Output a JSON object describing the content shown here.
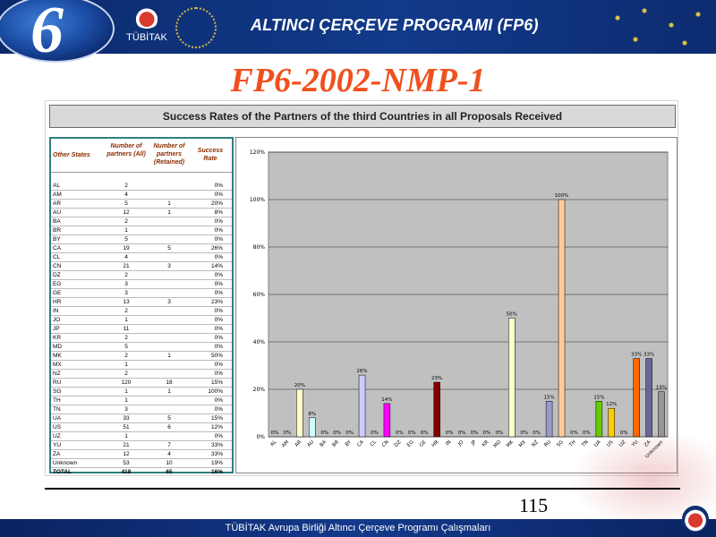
{
  "header": {
    "program_title": "ALTINCI ÇERÇEVE PROGRAMI (FP6)",
    "logo_number": "6",
    "tubitak_label": "TÜBİTAK"
  },
  "slide": {
    "title": "FP6-2002-NMP-1",
    "page_number": "115"
  },
  "footer": {
    "text": "TÜBİTAK Avrupa Birliği Altıncı Çerçeve Programı Çalışmaları"
  },
  "table": {
    "headers": [
      "Other States",
      "Number of partners (All)",
      "Number of partners (Retained)",
      "Success Rate"
    ],
    "rows": [
      [
        "AL",
        "2",
        "",
        "0%"
      ],
      [
        "AM",
        "4",
        "",
        "0%"
      ],
      [
        "AR",
        "5",
        "1",
        "20%"
      ],
      [
        "AU",
        "12",
        "1",
        "8%"
      ],
      [
        "BA",
        "2",
        "",
        "0%"
      ],
      [
        "BR",
        "1",
        "",
        "0%"
      ],
      [
        "BY",
        "5",
        "",
        "0%"
      ],
      [
        "CA",
        "19",
        "5",
        "26%"
      ],
      [
        "CL",
        "4",
        "",
        "0%"
      ],
      [
        "CN",
        "21",
        "3",
        "14%"
      ],
      [
        "DZ",
        "2",
        "",
        "0%"
      ],
      [
        "EG",
        "3",
        "",
        "0%"
      ],
      [
        "GE",
        "3",
        "",
        "0%"
      ],
      [
        "HR",
        "13",
        "3",
        "23%"
      ],
      [
        "IN",
        "2",
        "",
        "0%"
      ],
      [
        "JO",
        "1",
        "",
        "0%"
      ],
      [
        "JP",
        "11",
        "",
        "0%"
      ],
      [
        "KR",
        "2",
        "",
        "0%"
      ],
      [
        "MD",
        "5",
        "",
        "0%"
      ],
      [
        "MK",
        "2",
        "1",
        "50%"
      ],
      [
        "MX",
        "1",
        "",
        "0%"
      ],
      [
        "NZ",
        "2",
        "",
        "0%"
      ],
      [
        "RU",
        "120",
        "18",
        "15%"
      ],
      [
        "SG",
        "1",
        "1",
        "100%"
      ],
      [
        "TH",
        "1",
        "",
        "0%"
      ],
      [
        "TN",
        "3",
        "",
        "0%"
      ],
      [
        "UA",
        "33",
        "5",
        "15%"
      ],
      [
        "US",
        "51",
        "6",
        "12%"
      ],
      [
        "UZ",
        "1",
        "",
        "0%"
      ],
      [
        "YU",
        "21",
        "7",
        "33%"
      ],
      [
        "ZA",
        "12",
        "4",
        "33%"
      ],
      [
        "Unknown",
        "53",
        "10",
        "19%"
      ],
      [
        "TOTAL",
        "418",
        "65",
        "16%"
      ]
    ]
  },
  "chart_data": {
    "type": "bar",
    "title": "Success Rates of the Partners of the third Countries in all Proposals Received",
    "categories": [
      "AL",
      "AM",
      "AR",
      "AU",
      "BA",
      "BR",
      "BY",
      "CA",
      "CL",
      "CN",
      "DZ",
      "EG",
      "GE",
      "HR",
      "IN",
      "JO",
      "JP",
      "KR",
      "MD",
      "MK",
      "MX",
      "NZ",
      "RU",
      "SG",
      "TH",
      "TN",
      "UA",
      "US",
      "UZ",
      "YU",
      "ZA",
      "Unknown"
    ],
    "values": [
      0,
      0,
      20,
      8,
      0,
      0,
      0,
      26,
      0,
      14,
      0,
      0,
      0,
      23,
      0,
      0,
      0,
      0,
      0,
      50,
      0,
      0,
      15,
      100,
      0,
      0,
      15,
      12,
      0,
      33,
      33,
      19
    ],
    "value_labels": [
      "0%",
      "0%",
      "20%",
      "8%",
      "0%",
      "0%",
      "0%",
      "26%",
      "0%",
      "14%",
      "0%",
      "0%",
      "0%",
      "23%",
      "0%",
      "0%",
      "0%",
      "0%",
      "0%",
      "50%",
      "0%",
      "0%",
      "15%",
      "100%",
      "0%",
      "0%",
      "15%",
      "12%",
      "0%",
      "33%",
      "33%",
      "19%"
    ],
    "bar_colors": [
      "#9999ff",
      "#9999ff",
      "#ffffcc",
      "#ccffff",
      "#9999ff",
      "#9999ff",
      "#9999ff",
      "#ccccff",
      "#9999ff",
      "#ff00ff",
      "#9999ff",
      "#9999ff",
      "#9999ff",
      "#800000",
      "#9999ff",
      "#9999ff",
      "#9999ff",
      "#9999ff",
      "#9999ff",
      "#ffffcc",
      "#9999ff",
      "#9999ff",
      "#9999cc",
      "#ffcc99",
      "#9999ff",
      "#9999ff",
      "#66cc00",
      "#ffcc00",
      "#9999ff",
      "#ff6600",
      "#666699",
      "#969696"
    ],
    "y_ticks": [
      "0%",
      "20%",
      "40%",
      "60%",
      "80%",
      "100%",
      "120%"
    ],
    "ylim": [
      0,
      120
    ],
    "plot_background": "#c0c0c0",
    "grid": true,
    "xlabel": "",
    "ylabel": ""
  }
}
